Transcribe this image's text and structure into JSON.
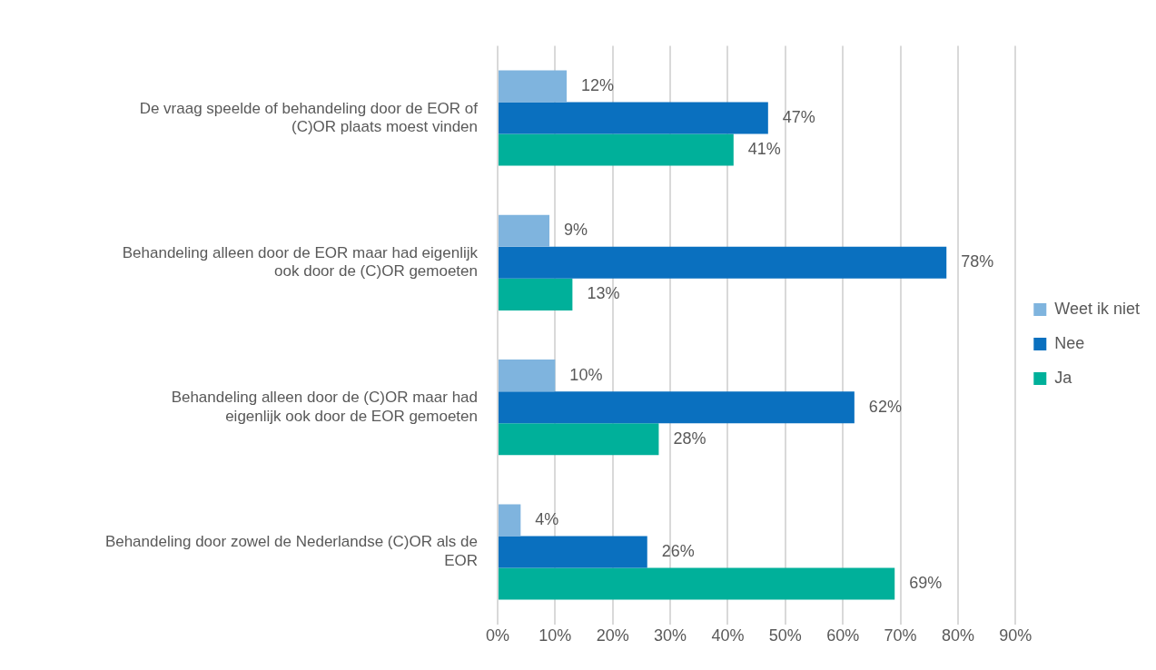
{
  "chart_data": {
    "type": "bar",
    "orientation": "horizontal",
    "categories": [
      "De vraag speelde of behandeling door de EOR of (C)OR plaats moest vinden",
      "Behandeling alleen door de EOR maar had eigenlijk ook door de (C)OR gemoeten",
      "Behandeling alleen door de (C)OR maar had eigenlijk ook door de EOR gemoeten",
      "Behandeling door zowel de Nederlandse (C)OR als de EOR"
    ],
    "series": [
      {
        "name": "Weet ik niet",
        "color": "#7fb4de",
        "values": [
          12,
          9,
          10,
          4
        ],
        "value_labels": [
          "12%",
          "9%",
          "10%",
          "4%"
        ]
      },
      {
        "name": "Nee",
        "color": "#0a70bf",
        "values": [
          47,
          78,
          62,
          26
        ],
        "value_labels": [
          "47%",
          "78%",
          "62%",
          "26%"
        ]
      },
      {
        "name": "Ja",
        "color": "#00b09a",
        "values": [
          41,
          13,
          28,
          69
        ],
        "value_labels": [
          "41%",
          "13%",
          "28%",
          "69%"
        ]
      }
    ],
    "xlim": [
      0,
      90
    ],
    "xticks": [
      {
        "value": 0,
        "label": "0%"
      },
      {
        "value": 10,
        "label": "10%"
      },
      {
        "value": 20,
        "label": "20%"
      },
      {
        "value": 30,
        "label": "30%"
      },
      {
        "value": 40,
        "label": "40%"
      },
      {
        "value": 50,
        "label": "50%"
      },
      {
        "value": 60,
        "label": "60%"
      },
      {
        "value": 70,
        "label": "70%"
      },
      {
        "value": 80,
        "label": "80%"
      },
      {
        "value": 90,
        "label": "90%"
      }
    ],
    "grid": "x",
    "legend": "right"
  }
}
